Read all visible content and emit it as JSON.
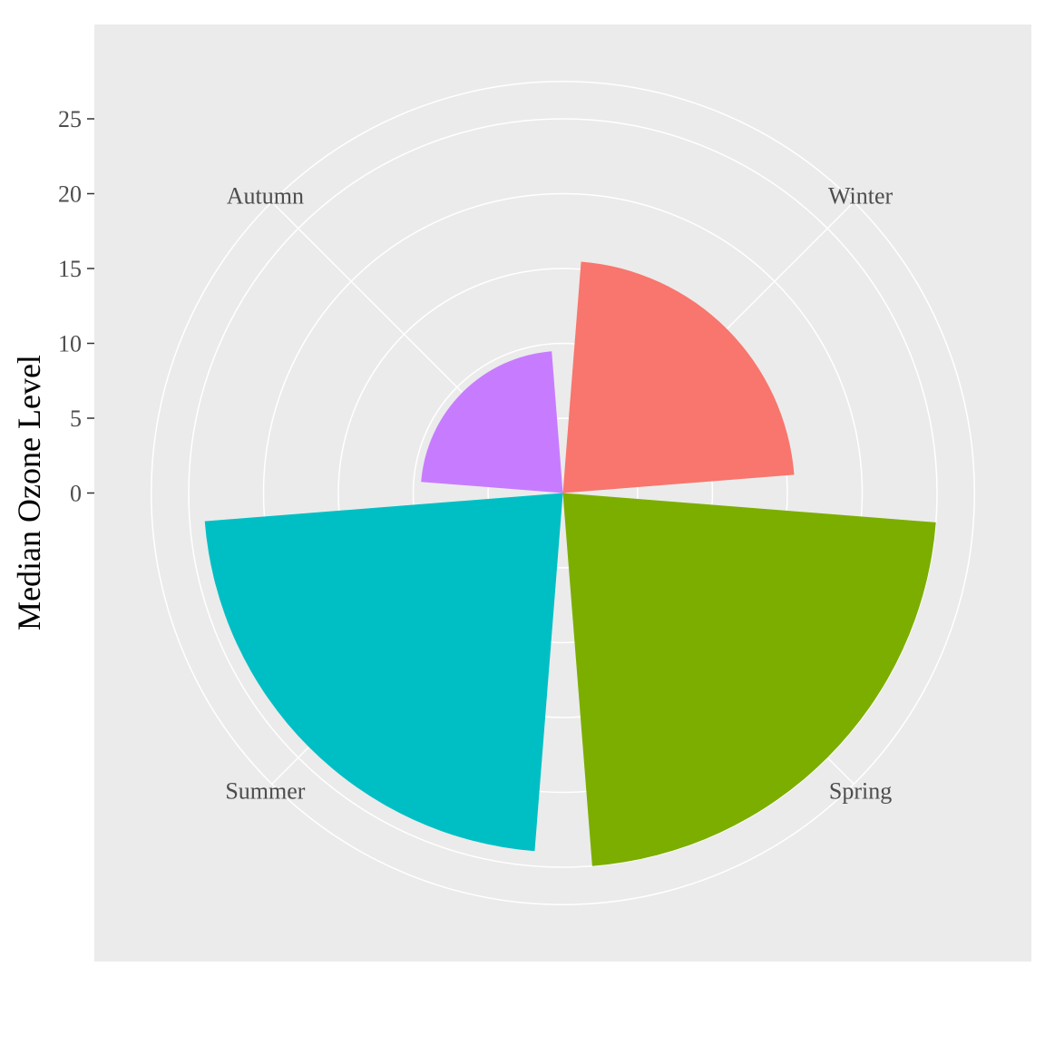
{
  "chart_data": {
    "type": "bar",
    "coord": "polar",
    "categories": [
      "Winter",
      "Spring",
      "Summer",
      "Autumn"
    ],
    "values": [
      15.5,
      25,
      24,
      9.5
    ],
    "ylabel": "Median Ozone Level",
    "xlabel": "",
    "yticks": [
      0,
      5,
      10,
      15,
      20,
      25
    ],
    "ylim": [
      0,
      25
    ],
    "grid": true,
    "legend": "none",
    "colors": {
      "Winter": "#F8766D",
      "Spring": "#7CAE00",
      "Summer": "#00BFC4",
      "Autumn": "#C77CFF"
    },
    "panel_background": "#EBEBEB",
    "grid_color": "#FFFFFF"
  }
}
